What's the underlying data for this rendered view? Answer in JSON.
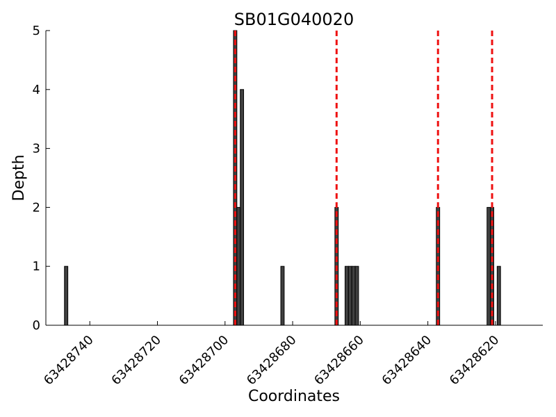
{
  "chart_data": {
    "type": "bar",
    "title": "SB01G040020",
    "xlabel": "Coordinates",
    "ylabel": "Depth",
    "x_axis_inverted": true,
    "xlim": [
      63428753,
      63428606
    ],
    "ylim": [
      0,
      5
    ],
    "x_ticks": [
      63428740,
      63428720,
      63428700,
      63428680,
      63428660,
      63428640,
      63428620
    ],
    "y_ticks": [
      0,
      1,
      2,
      3,
      4,
      5
    ],
    "series": [
      {
        "x": [
          63428747,
          63428697,
          63428696,
          63428695,
          63428683,
          63428667,
          63428664,
          63428663,
          63428662,
          63428661,
          63428637,
          63428622,
          63428621,
          63428619
        ],
        "values": [
          1,
          5,
          2,
          4,
          1,
          2,
          1,
          1,
          1,
          1,
          2,
          2,
          2,
          1
        ]
      }
    ],
    "reference_lines_x": [
      63428697,
      63428667,
      63428637,
      63428621
    ],
    "colors": {
      "bars": "#404040",
      "reference_lines": "#ee1111"
    },
    "grid": false
  }
}
